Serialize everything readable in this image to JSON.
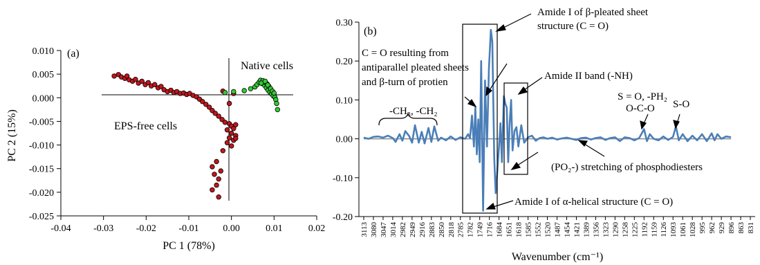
{
  "chart_data": [
    {
      "type": "scatter",
      "panel_label": "(a)",
      "xlabel": "PC 1 (78%)",
      "ylabel": "PC 2 (15%)",
      "xlim": [
        -0.04,
        0.02
      ],
      "ylim": [
        -0.025,
        0.01
      ],
      "xticks": [
        "-0.04",
        "-0.03",
        "-0.02",
        "-0.01",
        "0.00",
        "0.01",
        "0.02"
      ],
      "yticks": [
        "0.010",
        "0.005",
        "0.000",
        "-0.005",
        "-0.010",
        "-0.015",
        "-0.020",
        "-0.025"
      ],
      "annotations": [
        "Native cells",
        "EPS-free cells"
      ],
      "colors": {
        "eps_free": "#c0161c",
        "native": "#33cc33"
      },
      "series": [
        {
          "group": "EPS-free cells",
          "points": [
            [
              -0.0275,
              0.0046
            ],
            [
              -0.0265,
              0.0049
            ],
            [
              -0.0258,
              0.0044
            ],
            [
              -0.025,
              0.0041
            ],
            [
              -0.0245,
              0.0046
            ],
            [
              -0.024,
              0.0038
            ],
            [
              -0.0232,
              0.0035
            ],
            [
              -0.0225,
              0.0039
            ],
            [
              -0.0218,
              0.0031
            ],
            [
              -0.021,
              0.0035
            ],
            [
              -0.0202,
              0.0028
            ],
            [
              -0.0195,
              0.0032
            ],
            [
              -0.0188,
              0.0025
            ],
            [
              -0.018,
              0.0028
            ],
            [
              -0.0172,
              0.0021
            ],
            [
              -0.0165,
              0.0024
            ],
            [
              -0.0158,
              0.0017
            ],
            [
              -0.015,
              0.0013
            ],
            [
              -0.0142,
              0.0016
            ],
            [
              -0.0135,
              0.0011
            ],
            [
              -0.0128,
              0.0013
            ],
            [
              -0.012,
              0.0009
            ],
            [
              -0.0112,
              0.001
            ],
            [
              -0.0105,
              0.0007
            ],
            [
              -0.0098,
              0.0009
            ],
            [
              -0.009,
              0.0005
            ],
            [
              -0.0082,
              0.0002
            ],
            [
              -0.0075,
              -0.0003
            ],
            [
              -0.0068,
              -0.0008
            ],
            [
              -0.006,
              -0.0014
            ],
            [
              -0.0052,
              -0.002
            ],
            [
              -0.0045,
              -0.0027
            ],
            [
              -0.0038,
              -0.0033
            ],
            [
              -0.003,
              -0.0039
            ],
            [
              -0.0022,
              -0.0046
            ],
            [
              -0.0015,
              -0.0052
            ],
            [
              -0.0005,
              -0.0055
            ],
            [
              0.0,
              -0.006
            ],
            [
              0.0005,
              -0.0065
            ],
            [
              0.001,
              -0.0057
            ],
            [
              -0.001,
              -0.0068
            ],
            [
              0.0,
              -0.0075
            ],
            [
              0.001,
              -0.008
            ],
            [
              -0.0005,
              -0.0085
            ],
            [
              0.0005,
              -0.009
            ],
            [
              -0.001,
              -0.0095
            ],
            [
              0.0,
              -0.0102
            ],
            [
              0.001,
              -0.0086
            ],
            [
              -0.002,
              -0.0112
            ],
            [
              -0.0035,
              -0.0135
            ],
            [
              -0.0045,
              -0.0146
            ],
            [
              -0.0025,
              -0.0155
            ],
            [
              -0.004,
              -0.0162
            ],
            [
              -0.003,
              -0.0172
            ],
            [
              -0.0035,
              -0.0185
            ],
            [
              -0.0045,
              -0.0195
            ],
            [
              -0.003,
              -0.021
            ],
            [
              -0.0005,
              -0.0012
            ],
            [
              0.0005,
              0.0009
            ],
            [
              -0.002,
              0.0014
            ]
          ]
        },
        {
          "group": "Native cells",
          "points": [
            [
              -0.0015,
              0.0011
            ],
            [
              0.0005,
              0.0013
            ],
            [
              0.003,
              0.0015
            ],
            [
              0.0045,
              0.0019
            ],
            [
              0.0055,
              0.0023
            ],
            [
              0.006,
              0.0028
            ],
            [
              0.0065,
              0.0033
            ],
            [
              0.0068,
              0.0037
            ],
            [
              0.0072,
              0.003
            ],
            [
              0.0075,
              0.0034
            ],
            [
              0.0078,
              0.0026
            ],
            [
              0.008,
              0.0032
            ],
            [
              0.0082,
              0.0021
            ],
            [
              0.0084,
              0.0029
            ],
            [
              0.0086,
              0.0016
            ],
            [
              0.0088,
              0.0024
            ],
            [
              0.009,
              0.0012
            ],
            [
              0.0092,
              0.0019
            ],
            [
              0.0094,
              0.0008
            ],
            [
              0.0096,
              0.0014
            ],
            [
              0.0098,
              0.0004
            ],
            [
              0.01,
              0.001
            ],
            [
              0.0102,
              0.0001
            ],
            [
              0.0104,
              -0.0004
            ],
            [
              0.0106,
              -0.0012
            ],
            [
              0.0108,
              -0.0025
            ],
            [
              0.0074,
              0.0036
            ],
            [
              0.007,
              0.0031
            ],
            [
              0.0079,
              0.0035
            ],
            [
              0.0085,
              0.0027
            ]
          ]
        }
      ]
    },
    {
      "type": "line",
      "panel_label": "(b)",
      "xlabel": "Wavenumber (cm⁻¹)",
      "ylabel": "",
      "ylim": [
        -0.2,
        0.3
      ],
      "yticks": [
        "0.30",
        "0.20",
        "0.10",
        "0.00",
        "-0.10",
        "-0.20"
      ],
      "x_categories": [
        "3113",
        "3080",
        "3047",
        "3014",
        "2982",
        "2949",
        "2916",
        "2883",
        "2850",
        "2818",
        "2785",
        "1782",
        "1749",
        "1716",
        "1684",
        "1651",
        "1618",
        "1585",
        "1552",
        "1520",
        "1487",
        "1454",
        "1421",
        "1389",
        "1356",
        "1323",
        "1290",
        "1258",
        "1225",
        "1192",
        "1159",
        "1126",
        "1093",
        "1061",
        "1028",
        "995",
        "962",
        "929",
        "896",
        "863",
        "831"
      ],
      "colors": {
        "line": "#4a7eb8",
        "zero_line": "#8c8c8c"
      },
      "annotations": {
        "beta_sheet": [
          "Amide I of β-pleated sheet",
          "structure (C = O)"
        ],
        "antiparallel": [
          "C = O resulting from",
          "antiparallel pleated sheets",
          "and β-turn of protien"
        ],
        "amide2": "Amide II band (-NH)",
        "ch": "-CH₃, -CH₂",
        "s_o_ph": "S = O, -PH₂",
        "o_c_o": "O-C-O",
        "s_o": "S-O",
        "po2": "(PO₂-) stretching of phosphodiesters",
        "alpha": "Amide I of α-helical structure (C = O)"
      },
      "line_points": [
        [
          0.0,
          0.003
        ],
        [
          0.5,
          0.0
        ],
        [
          1.0,
          0.005
        ],
        [
          1.5,
          0.006
        ],
        [
          2.0,
          0.003
        ],
        [
          2.5,
          0.008
        ],
        [
          3.0,
          0.002
        ],
        [
          3.3,
          -0.008
        ],
        [
          3.7,
          0.012
        ],
        [
          4.0,
          -0.005
        ],
        [
          4.3,
          0.02
        ],
        [
          4.7,
          0.007
        ],
        [
          5.0,
          -0.01
        ],
        [
          5.3,
          0.035
        ],
        [
          5.7,
          -0.01
        ],
        [
          6.0,
          0.018
        ],
        [
          6.3,
          -0.012
        ],
        [
          6.7,
          0.028
        ],
        [
          7.0,
          -0.008
        ],
        [
          7.3,
          0.032
        ],
        [
          7.7,
          -0.005
        ],
        [
          8.0,
          0.003
        ],
        [
          8.5,
          -0.004
        ],
        [
          9.0,
          0.006
        ],
        [
          9.5,
          -0.003
        ],
        [
          10.0,
          0.004
        ],
        [
          10.5,
          0.0
        ],
        [
          10.8,
          0.012
        ],
        [
          11.0,
          0.002
        ],
        [
          11.2,
          0.06
        ],
        [
          11.4,
          -0.02
        ],
        [
          11.55,
          0.08
        ],
        [
          11.7,
          -0.04
        ],
        [
          11.85,
          0.05
        ],
        [
          12.0,
          -0.06
        ],
        [
          12.15,
          0.2
        ],
        [
          12.35,
          -0.185
        ],
        [
          12.55,
          0.15
        ],
        [
          12.75,
          -0.02
        ],
        [
          12.95,
          0.18
        ],
        [
          13.15,
          0.28
        ],
        [
          13.3,
          0.25
        ],
        [
          13.5,
          -0.05
        ],
        [
          13.65,
          -0.14
        ],
        [
          13.8,
          -0.09
        ],
        [
          14.0,
          -0.02
        ],
        [
          14.15,
          0.04
        ],
        [
          14.3,
          -0.06
        ],
        [
          14.5,
          0.11
        ],
        [
          14.65,
          0.09
        ],
        [
          14.8,
          0.08
        ],
        [
          14.95,
          -0.06
        ],
        [
          15.1,
          0.04
        ],
        [
          15.25,
          0.1
        ],
        [
          15.4,
          -0.03
        ],
        [
          15.6,
          0.02
        ],
        [
          15.8,
          0.03
        ],
        [
          16.0,
          -0.02
        ],
        [
          16.3,
          0.035
        ],
        [
          16.6,
          -0.01
        ],
        [
          17.0,
          0.004
        ],
        [
          17.4,
          0.008
        ],
        [
          17.8,
          -0.005
        ],
        [
          18.2,
          0.002
        ],
        [
          18.6,
          0.004
        ],
        [
          19.0,
          0.0
        ],
        [
          19.5,
          0.003
        ],
        [
          20.0,
          -0.002
        ],
        [
          20.5,
          0.001
        ],
        [
          21.0,
          0.003
        ],
        [
          21.5,
          0.0
        ],
        [
          22.0,
          -0.003
        ],
        [
          22.5,
          0.002
        ],
        [
          23.0,
          0.003
        ],
        [
          23.5,
          -0.002
        ],
        [
          24.0,
          0.002
        ],
        [
          24.5,
          0.004
        ],
        [
          25.0,
          -0.003
        ],
        [
          25.5,
          0.002
        ],
        [
          26.0,
          0.004
        ],
        [
          26.5,
          -0.006
        ],
        [
          27.0,
          0.004
        ],
        [
          27.5,
          0.002
        ],
        [
          28.0,
          -0.004
        ],
        [
          28.5,
          0.002
        ],
        [
          29.0,
          0.025
        ],
        [
          29.3,
          -0.006
        ],
        [
          29.6,
          0.012
        ],
        [
          30.0,
          0.0
        ],
        [
          30.5,
          -0.004
        ],
        [
          31.0,
          0.006
        ],
        [
          31.5,
          -0.003
        ],
        [
          32.0,
          0.005
        ],
        [
          32.3,
          0.032
        ],
        [
          32.6,
          -0.004
        ],
        [
          33.0,
          0.012
        ],
        [
          33.5,
          -0.006
        ],
        [
          34.0,
          0.008
        ],
        [
          34.5,
          -0.004
        ],
        [
          35.0,
          0.012
        ],
        [
          35.5,
          -0.006
        ],
        [
          36.0,
          0.014
        ],
        [
          36.3,
          -0.004
        ],
        [
          36.6,
          0.012
        ],
        [
          37.0,
          0.0
        ],
        [
          37.5,
          0.006
        ],
        [
          38.0,
          0.004
        ]
      ]
    }
  ]
}
